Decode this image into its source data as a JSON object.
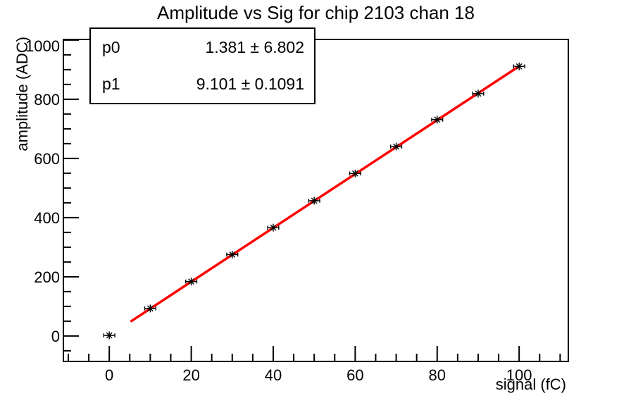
{
  "window": {
    "background": "#ffffff"
  },
  "chart_data": {
    "type": "scatter",
    "title": "Amplitude vs Sig for chip 2103 chan 18",
    "xlabel": "signal (fC)",
    "ylabel": "amplitude (ADC)",
    "xlim": [
      -11.2,
      112.0
    ],
    "ylim": [
      -86,
      1002
    ],
    "xticks": [
      0,
      20,
      40,
      60,
      80,
      100
    ],
    "yticks": [
      0,
      200,
      400,
      600,
      800,
      1000
    ],
    "x_minor_step": 5,
    "y_minor_step": 50,
    "grid": false,
    "x": [
      0,
      10,
      20,
      30,
      40,
      50,
      60,
      70,
      80,
      90,
      100
    ],
    "y": [
      2,
      93,
      184,
      275,
      366,
      457,
      549,
      640,
      731,
      819,
      911
    ],
    "xerr": 1.35,
    "marker": "asterisk",
    "marker_color": "#000000",
    "axis_color": "#000000",
    "fit": {
      "type": "linear",
      "p0": 1.381,
      "p1": 9.101,
      "x_start": 5.4,
      "x_end": 100,
      "color": "#ff0000",
      "line_width": 3.5
    }
  },
  "stats_box": {
    "rows": [
      {
        "name": "p0",
        "value": "1.381 ± 6.802"
      },
      {
        "name": "p1",
        "value": "9.101 ± 0.1091"
      }
    ]
  }
}
